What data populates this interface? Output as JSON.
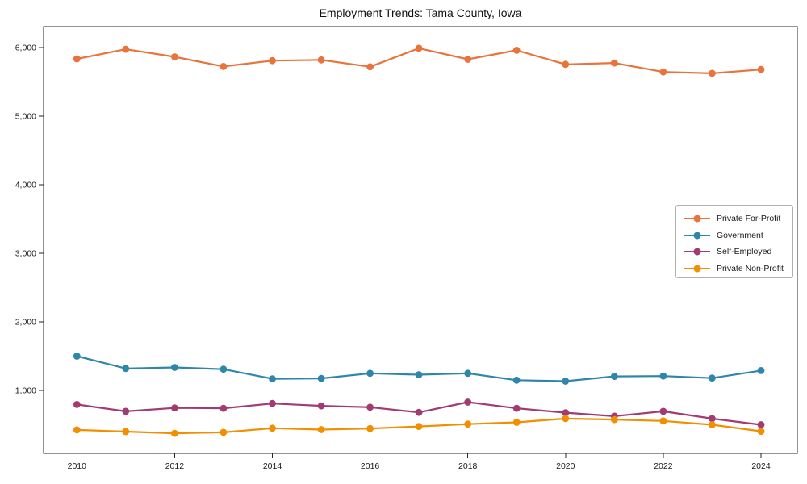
{
  "chart_data": {
    "type": "line",
    "title": "Employment Trends: Tama County, Iowa",
    "xlabel": "",
    "ylabel": "",
    "x": [
      2010,
      2011,
      2012,
      2013,
      2014,
      2015,
      2016,
      2017,
      2018,
      2019,
      2020,
      2021,
      2022,
      2023,
      2024
    ],
    "series": [
      {
        "name": "Private For-Profit",
        "color": "#E8743B",
        "values": [
          5835,
          5975,
          5865,
          5725,
          5810,
          5820,
          5720,
          5990,
          5830,
          5960,
          5755,
          5775,
          5645,
          5625,
          5680
        ]
      },
      {
        "name": "Government",
        "color": "#2E86AB",
        "values": [
          1500,
          1320,
          1335,
          1310,
          1170,
          1175,
          1250,
          1230,
          1250,
          1150,
          1135,
          1205,
          1210,
          1180,
          1290
        ]
      },
      {
        "name": "Self-Employed",
        "color": "#A23B72",
        "values": [
          795,
          695,
          745,
          740,
          810,
          775,
          755,
          680,
          830,
          740,
          675,
          625,
          695,
          590,
          500
        ]
      },
      {
        "name": "Private Non-Profit",
        "color": "#F18F01",
        "values": [
          425,
          400,
          375,
          390,
          450,
          430,
          445,
          475,
          510,
          535,
          590,
          575,
          555,
          500,
          405
        ]
      }
    ],
    "xticks": [
      2010,
      2012,
      2014,
      2016,
      2018,
      2020,
      2022,
      2024
    ],
    "xtick_labels": [
      "2010",
      "2012",
      "2014",
      "2016",
      "2018",
      "2020",
      "2022",
      "2024"
    ],
    "yticks": [
      1000,
      2000,
      3000,
      4000,
      5000,
      6000
    ],
    "ytick_labels": [
      "1,000",
      "2,000",
      "3,000",
      "4,000",
      "5,000",
      "6,000"
    ],
    "ylim": [
      85,
      6305
    ],
    "xlim": [
      2009.3,
      2024.75
    ],
    "grid": false,
    "legend_position": "center right",
    "spine_color": "#262626",
    "text_color": "#1a1a1a",
    "background_color": "#ffffff"
  }
}
